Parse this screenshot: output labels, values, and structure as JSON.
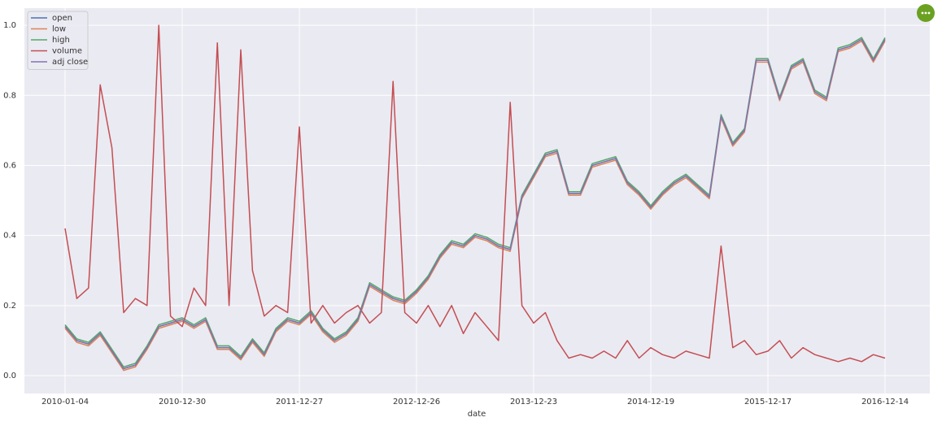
{
  "chart_data": {
    "type": "line",
    "xlabel": "date",
    "categories": [
      "2010-01-04",
      null,
      null,
      null,
      null,
      null,
      null,
      null,
      null,
      null,
      "2010-12-30",
      null,
      null,
      null,
      null,
      null,
      null,
      null,
      null,
      null,
      "2011-12-27",
      null,
      null,
      null,
      null,
      null,
      null,
      null,
      null,
      null,
      "2012-12-26",
      null,
      null,
      null,
      null,
      null,
      null,
      null,
      null,
      null,
      "2013-12-23",
      null,
      null,
      null,
      null,
      null,
      null,
      null,
      null,
      null,
      "2014-12-19",
      null,
      null,
      null,
      null,
      null,
      null,
      null,
      null,
      null,
      "2015-12-17",
      null,
      null,
      null,
      null,
      null,
      null,
      null,
      null,
      null,
      "2016-12-14"
    ],
    "series": [
      {
        "name": "open",
        "color": "#4c72b0",
        "values": [
          0.14,
          0.1,
          0.09,
          0.12,
          0.07,
          0.02,
          0.03,
          0.08,
          0.14,
          0.15,
          0.16,
          0.14,
          0.16,
          0.08,
          0.08,
          0.05,
          0.1,
          0.06,
          0.13,
          0.16,
          0.15,
          0.18,
          0.13,
          0.1,
          0.12,
          0.16,
          0.26,
          0.24,
          0.22,
          0.21,
          0.24,
          0.28,
          0.34,
          0.38,
          0.37,
          0.4,
          0.39,
          0.37,
          0.36,
          0.51,
          0.57,
          0.63,
          0.64,
          0.52,
          0.52,
          0.6,
          0.61,
          0.62,
          0.55,
          0.52,
          0.48,
          0.52,
          0.55,
          0.57,
          0.54,
          0.51,
          0.74,
          0.66,
          0.7,
          0.9,
          0.9,
          0.79,
          0.88,
          0.9,
          0.81,
          0.79,
          0.93,
          0.94,
          0.96,
          0.9,
          0.96
        ]
      },
      {
        "name": "low",
        "color": "#dd8452",
        "values": [
          0.135,
          0.095,
          0.085,
          0.115,
          0.065,
          0.015,
          0.025,
          0.075,
          0.135,
          0.145,
          0.155,
          0.135,
          0.155,
          0.075,
          0.075,
          0.045,
          0.095,
          0.055,
          0.125,
          0.155,
          0.145,
          0.175,
          0.125,
          0.095,
          0.115,
          0.155,
          0.255,
          0.235,
          0.215,
          0.205,
          0.235,
          0.275,
          0.335,
          0.375,
          0.365,
          0.395,
          0.385,
          0.365,
          0.355,
          0.505,
          0.565,
          0.625,
          0.635,
          0.515,
          0.515,
          0.595,
          0.605,
          0.615,
          0.545,
          0.515,
          0.475,
          0.515,
          0.545,
          0.565,
          0.535,
          0.505,
          0.735,
          0.655,
          0.695,
          0.895,
          0.895,
          0.785,
          0.875,
          0.895,
          0.805,
          0.785,
          0.925,
          0.935,
          0.955,
          0.895,
          0.955
        ]
      },
      {
        "name": "high",
        "color": "#55a868",
        "values": [
          0.145,
          0.105,
          0.095,
          0.125,
          0.075,
          0.025,
          0.035,
          0.085,
          0.145,
          0.155,
          0.165,
          0.145,
          0.165,
          0.085,
          0.085,
          0.055,
          0.105,
          0.065,
          0.135,
          0.165,
          0.155,
          0.185,
          0.135,
          0.105,
          0.125,
          0.165,
          0.265,
          0.245,
          0.225,
          0.215,
          0.245,
          0.285,
          0.345,
          0.385,
          0.375,
          0.405,
          0.395,
          0.375,
          0.365,
          0.515,
          0.575,
          0.635,
          0.645,
          0.525,
          0.525,
          0.605,
          0.615,
          0.625,
          0.555,
          0.525,
          0.485,
          0.525,
          0.555,
          0.575,
          0.545,
          0.515,
          0.745,
          0.665,
          0.705,
          0.905,
          0.905,
          0.795,
          0.885,
          0.905,
          0.815,
          0.795,
          0.935,
          0.945,
          0.965,
          0.905,
          0.965
        ]
      },
      {
        "name": "volume",
        "color": "#c44e52",
        "values": [
          0.42,
          0.22,
          0.25,
          0.83,
          0.65,
          0.18,
          0.22,
          0.2,
          1.0,
          0.17,
          0.14,
          0.25,
          0.2,
          0.95,
          0.2,
          0.93,
          0.3,
          0.17,
          0.2,
          0.18,
          0.71,
          0.15,
          0.2,
          0.15,
          0.18,
          0.2,
          0.15,
          0.18,
          0.84,
          0.18,
          0.15,
          0.2,
          0.14,
          0.2,
          0.12,
          0.18,
          0.14,
          0.1,
          0.78,
          0.2,
          0.15,
          0.18,
          0.1,
          0.05,
          0.06,
          0.05,
          0.07,
          0.05,
          0.1,
          0.05,
          0.08,
          0.06,
          0.05,
          0.07,
          0.06,
          0.05,
          0.37,
          0.08,
          0.1,
          0.06,
          0.07,
          0.1,
          0.05,
          0.08,
          0.06,
          0.05,
          0.04,
          0.05,
          0.04,
          0.06,
          0.05
        ]
      },
      {
        "name": "adj close",
        "color": "#8172b3",
        "values": [
          0.14,
          0.1,
          0.09,
          0.12,
          0.07,
          0.02,
          0.03,
          0.08,
          0.14,
          0.15,
          0.16,
          0.14,
          0.16,
          0.08,
          0.08,
          0.05,
          0.1,
          0.06,
          0.13,
          0.16,
          0.15,
          0.18,
          0.13,
          0.1,
          0.12,
          0.16,
          0.26,
          0.24,
          0.22,
          0.21,
          0.24,
          0.28,
          0.34,
          0.38,
          0.37,
          0.4,
          0.39,
          0.37,
          0.36,
          0.51,
          0.57,
          0.63,
          0.64,
          0.52,
          0.52,
          0.6,
          0.61,
          0.62,
          0.55,
          0.52,
          0.48,
          0.52,
          0.55,
          0.57,
          0.54,
          0.51,
          0.74,
          0.66,
          0.7,
          0.9,
          0.9,
          0.79,
          0.88,
          0.9,
          0.81,
          0.79,
          0.93,
          0.94,
          0.96,
          0.9,
          0.96
        ]
      }
    ],
    "ylim": [
      -0.051,
      1.049
    ],
    "yticks": [
      {
        "value": 0,
        "label": "0.0"
      },
      0.2,
      0.4,
      0.6,
      0.8,
      {
        "value": 1,
        "label": "1.0"
      }
    ],
    "grid": true,
    "legend": "upper left"
  }
}
